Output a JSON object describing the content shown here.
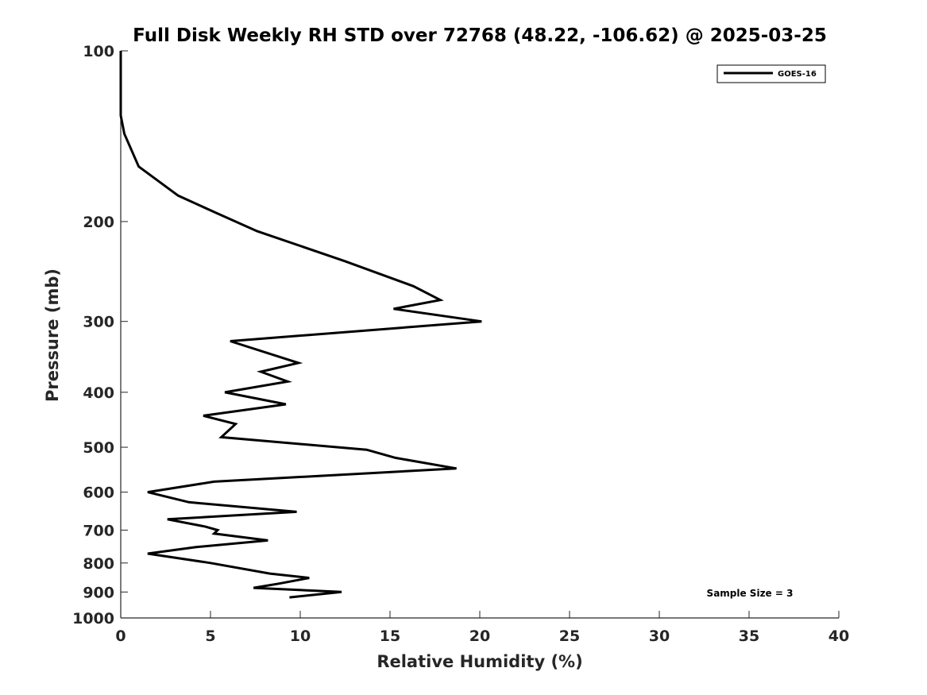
{
  "chart_data": {
    "type": "line",
    "title": "Full Disk Weekly RH STD over 72768 (48.22, -106.62) @ 2025-03-25",
    "xlabel": "Relative Humidity (%)",
    "ylabel": "Pressure (mb)",
    "xlim": [
      0,
      40
    ],
    "ylim": [
      100,
      1000
    ],
    "y_scale": "log",
    "y_inverted": true,
    "grid": false,
    "legend_position": "top-right",
    "xticks": [
      "0",
      "5",
      "10",
      "15",
      "20",
      "25",
      "30",
      "35",
      "40"
    ],
    "xtick_values": [
      0,
      5,
      10,
      15,
      20,
      25,
      30,
      35,
      40
    ],
    "yticks": [
      "100",
      "200",
      "300",
      "400",
      "500",
      "600",
      "700",
      "800",
      "900",
      "1000"
    ],
    "ytick_values": [
      100,
      200,
      300,
      400,
      500,
      600,
      700,
      800,
      900,
      1000
    ],
    "annotation": "Sample Size = 3",
    "series": [
      {
        "name": "GOES-16",
        "color": "#000000",
        "x": [
          0.0,
          0.0,
          0.0,
          0.2,
          1.0,
          3.2,
          5.3,
          7.6,
          12.5,
          16.3,
          17.8,
          15.2,
          20.1,
          6.1,
          9.9,
          7.8,
          9.3,
          5.8,
          9.2,
          4.6,
          6.4,
          5.6,
          13.7,
          15.3,
          18.7,
          5.2,
          1.5,
          3.8,
          9.8,
          2.6,
          4.7,
          5.4,
          5.2,
          8.2,
          4.2,
          1.5,
          5.0,
          8.3,
          10.5,
          8.8,
          7.4,
          12.3,
          9.4
        ],
        "y": [
          100,
          115,
          130,
          140,
          160,
          180,
          193,
          208,
          235,
          260,
          275,
          285,
          300,
          325,
          355,
          368,
          383,
          400,
          420,
          440,
          455,
          480,
          505,
          522,
          545,
          575,
          600,
          625,
          650,
          670,
          690,
          700,
          710,
          730,
          750,
          770,
          800,
          835,
          850,
          870,
          885,
          900,
          920
        ]
      }
    ]
  }
}
